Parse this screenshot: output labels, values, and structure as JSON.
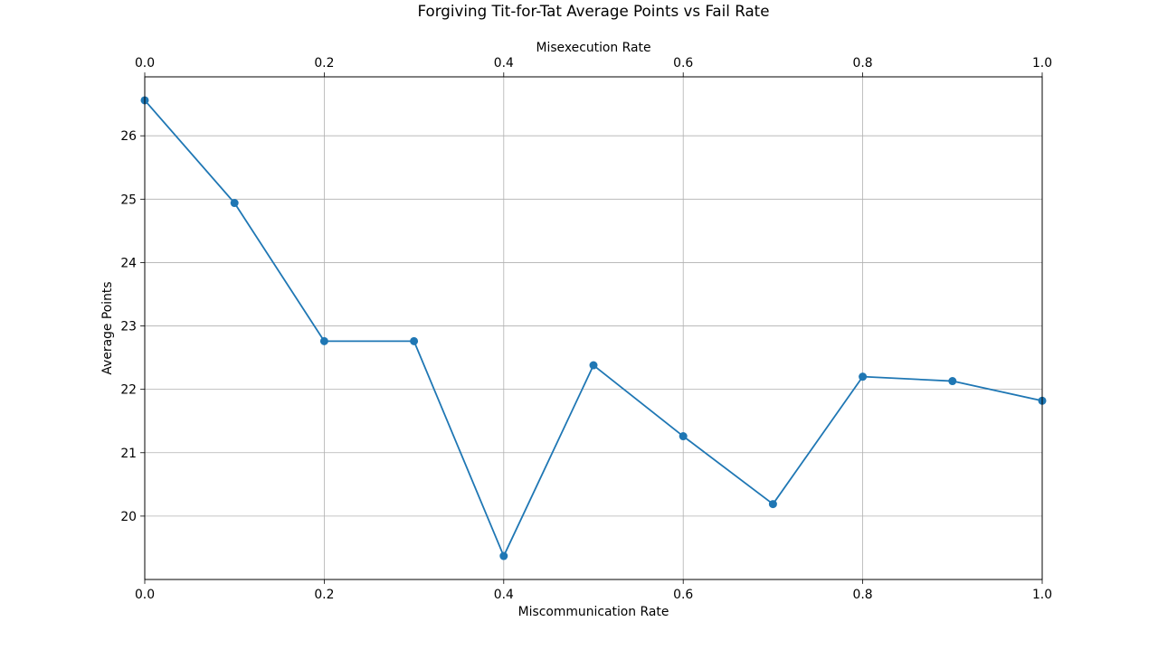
{
  "chart_data": {
    "type": "line",
    "title": "Forgiving Tit-for-Tat Average Points vs Fail Rate",
    "xlabel": "Miscommunication Rate",
    "x2label": "Misexecution Rate",
    "ylabel": "Average Points",
    "xlim": [
      0.0,
      1.0
    ],
    "ylim": [
      19.0,
      26.93
    ],
    "x_ticks": [
      "0.0",
      "0.2",
      "0.4",
      "0.6",
      "0.8",
      "1.0"
    ],
    "x2_ticks": [
      "0.0",
      "0.2",
      "0.4",
      "0.6",
      "0.8",
      "1.0"
    ],
    "y_ticks": [
      "20",
      "21",
      "22",
      "23",
      "24",
      "25",
      "26"
    ],
    "grid": true,
    "color": "#1f77b4",
    "series": [
      {
        "x": [
          0.0,
          0.1,
          0.2,
          0.3,
          0.4,
          0.5,
          0.6,
          0.7,
          0.8,
          0.9,
          1.0
        ],
        "values": [
          26.56,
          24.94,
          22.76,
          22.76,
          19.37,
          22.38,
          21.26,
          20.19,
          22.2,
          22.13,
          21.82
        ]
      }
    ]
  }
}
